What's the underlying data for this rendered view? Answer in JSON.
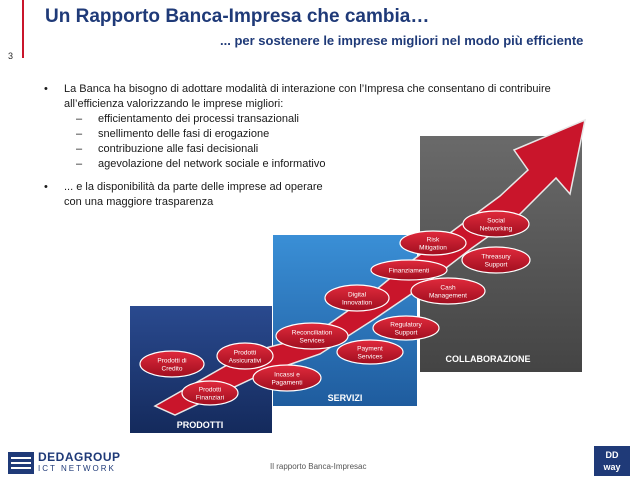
{
  "page_number": "3",
  "title": "Un Rapporto Banca-Impresa che cambia…",
  "subtitle": "... per sostenere le imprese migliori nel modo più efficiente",
  "bullets": [
    {
      "line1": "La Banca ha bisogno di adottare modalità di interazione con l’Impresa che consentano di contribuire",
      "line2": "all’efficienza valorizzando le imprese migliori:",
      "sub": [
        "efficientamento dei processi transazionali",
        "snellimento delle fasi di erogazione",
        "contribuzione alle fasi decisionali",
        "agevolazione  del network sociale e informativo"
      ]
    },
    {
      "line1": "... e la disponibilità da parte delle imprese ad operare",
      "line2": "con una maggiore trasparenza"
    }
  ],
  "diagram": {
    "levels": [
      "PRODOTTI",
      "SERVIZI",
      "COLLABORAZIONE"
    ],
    "bubbles": [
      [
        "Prodotti di",
        "Credito"
      ],
      [
        "Prodotti",
        "Assicurativi"
      ],
      [
        "Prodotti",
        "Finanziari"
      ],
      [
        "Incassi e",
        "Pagamenti"
      ],
      [
        "Reconciliation",
        "Services"
      ],
      [
        "Payment",
        "Services"
      ],
      [
        "Digital",
        "Innovation"
      ],
      [
        "Regulatory",
        "Support"
      ],
      [
        "Finanziamenti"
      ],
      [
        "Cash",
        "Management"
      ],
      [
        "Risk",
        "Mitigation"
      ],
      [
        "Threasury",
        "Support"
      ],
      [
        "Social",
        "Networking"
      ]
    ],
    "colors": {
      "prodotti": "#1f3a78",
      "servizi": "#2f7fc4",
      "collaborazione": "#5c5c5c",
      "arrow": "#c9152b",
      "bubble": "#c9152b"
    }
  },
  "footer": {
    "logo_main": "DEDAGROUP",
    "logo_sub": "ICT NETWORK",
    "center_text": "Il rapporto Banca-Impresac",
    "dd_line1": "DD",
    "dd_line2": "way"
  }
}
